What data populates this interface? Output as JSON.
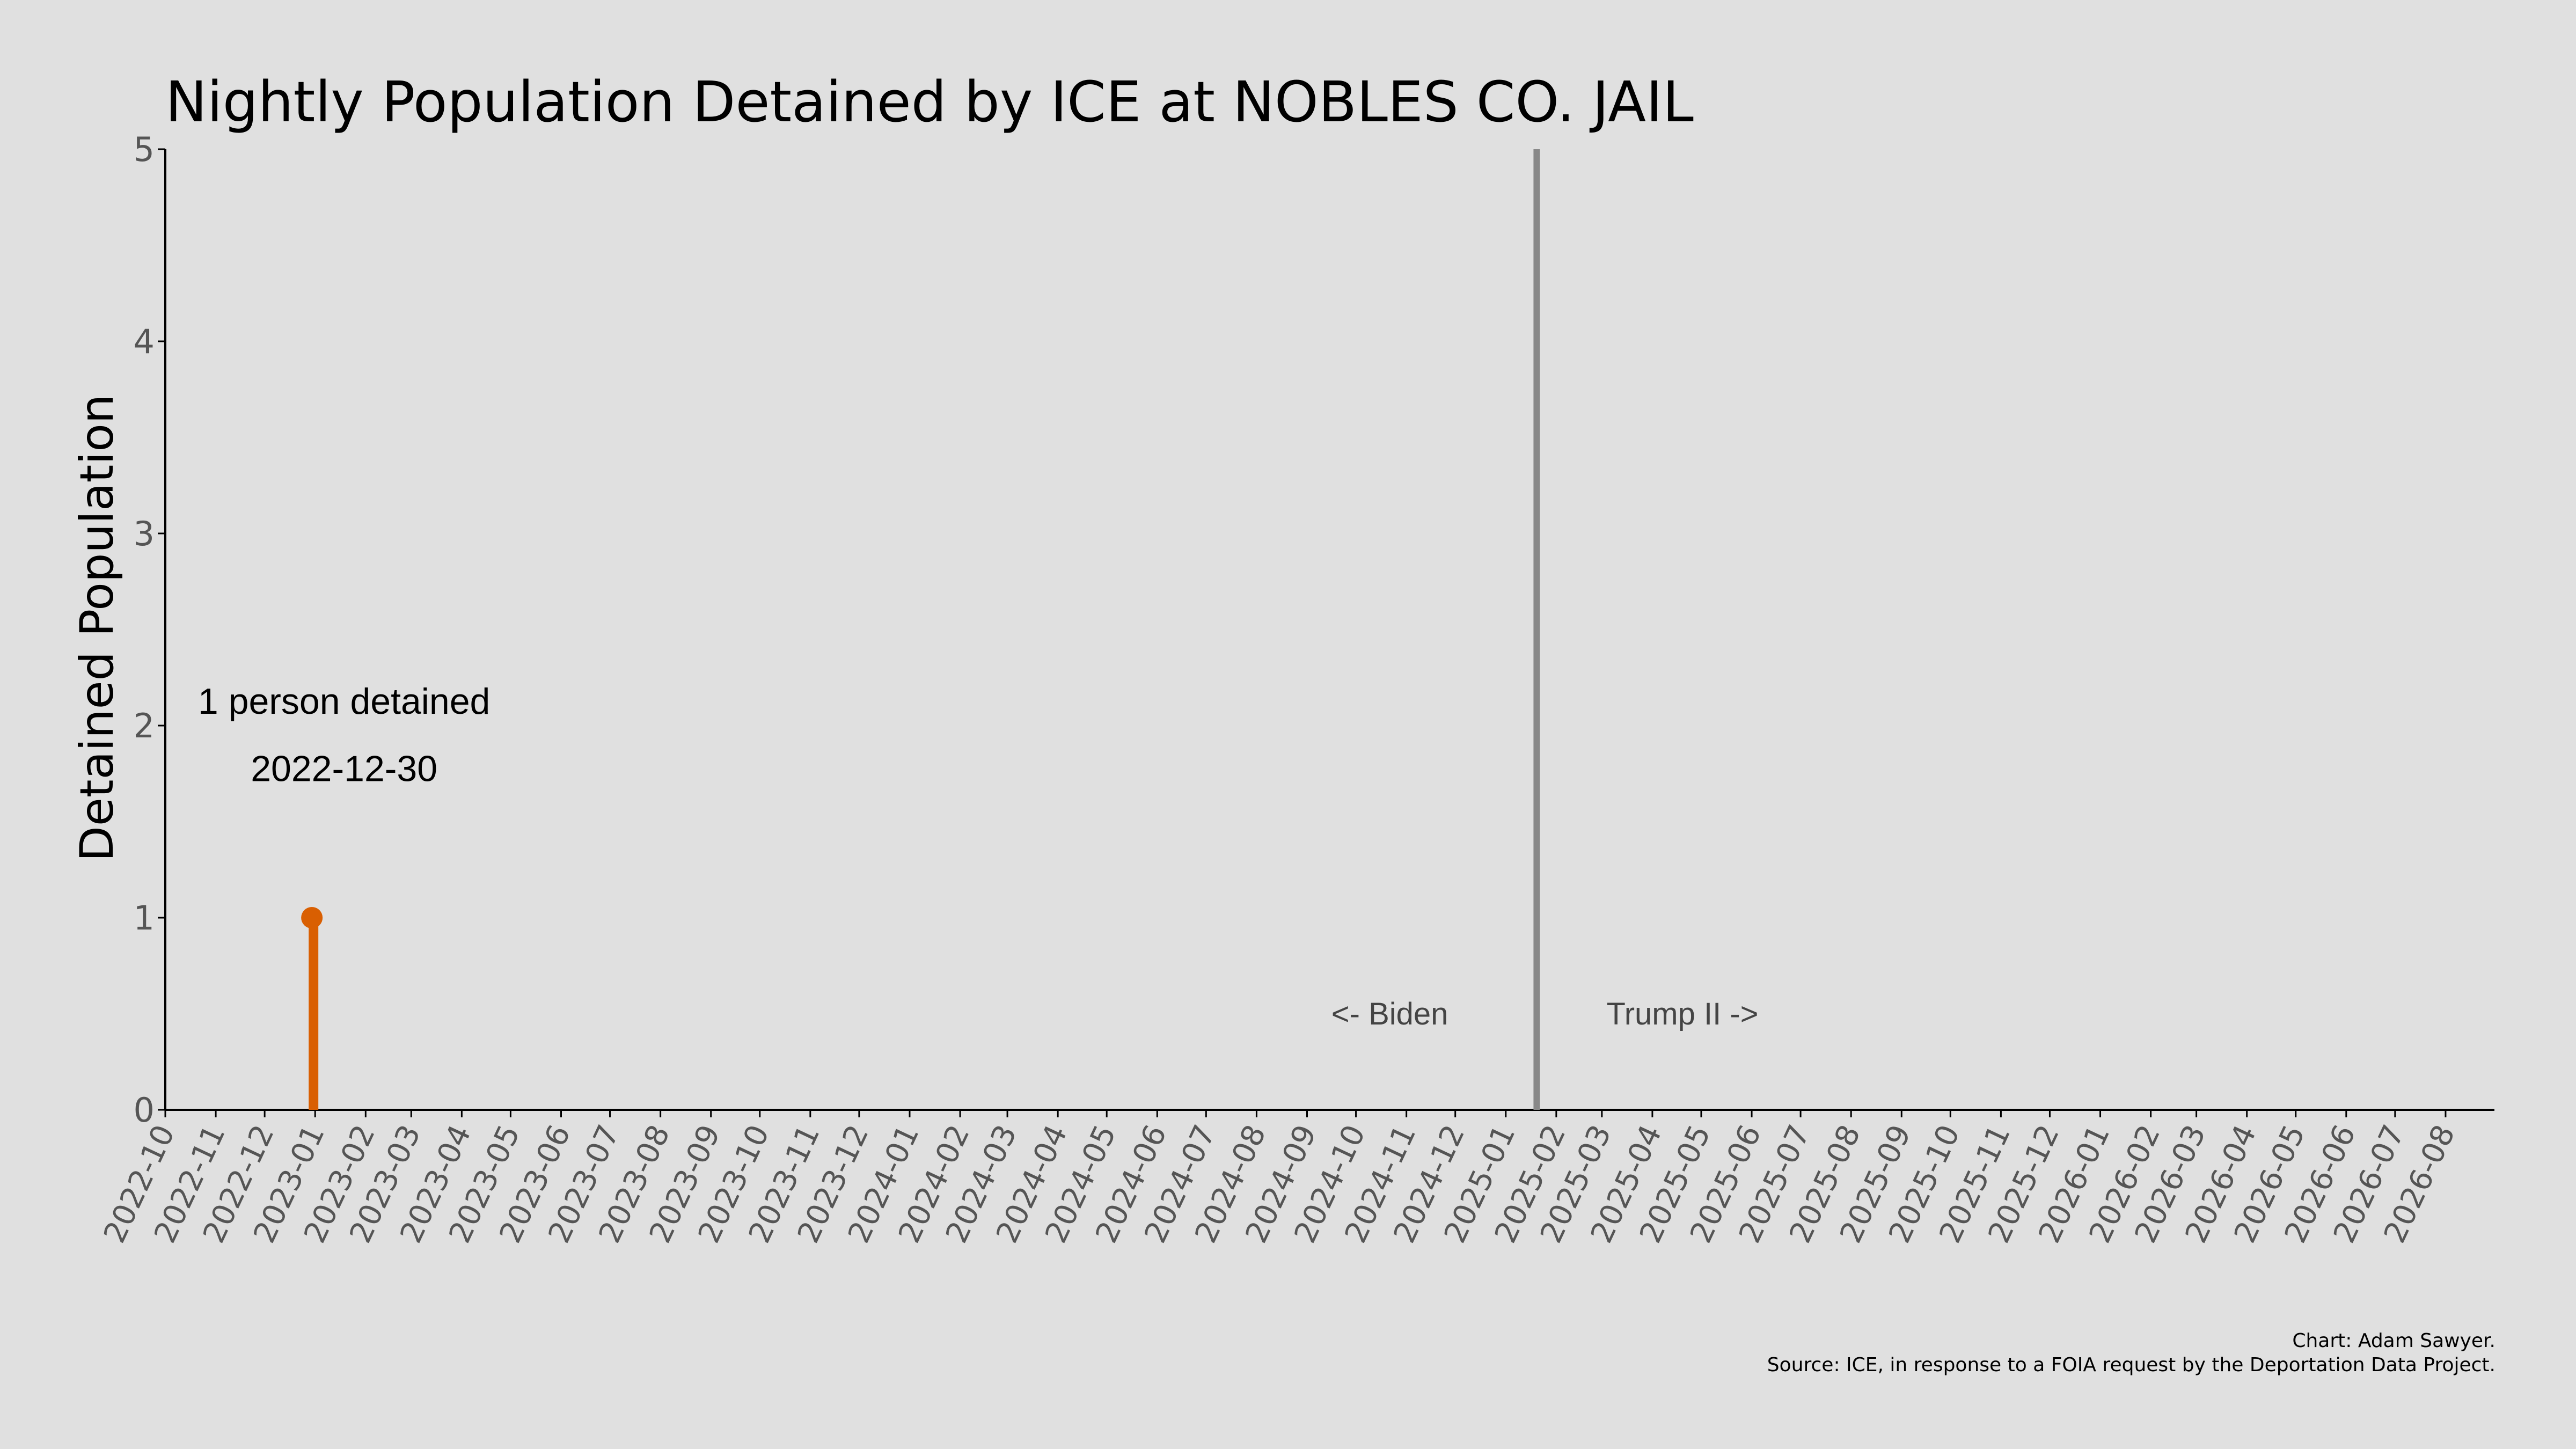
{
  "chart_data": {
    "type": "line",
    "title": "Nightly Population Detained by ICE at NOBLES CO. JAIL",
    "xlabel": "",
    "ylabel": "Detained Population",
    "x_axis_type": "date",
    "xlim": [
      "2022-10-01",
      "2026-08-31"
    ],
    "ylim": [
      0,
      5
    ],
    "yticks": [
      0,
      1,
      2,
      3,
      4,
      5
    ],
    "xticks": [
      "2022-10",
      "2022-11",
      "2022-12",
      "2023-01",
      "2023-02",
      "2023-03",
      "2023-04",
      "2023-05",
      "2023-06",
      "2023-07",
      "2023-08",
      "2023-09",
      "2023-10",
      "2023-11",
      "2023-12",
      "2024-01",
      "2024-02",
      "2024-03",
      "2024-04",
      "2024-05",
      "2024-06",
      "2024-07",
      "2024-08",
      "2024-09",
      "2024-10",
      "2024-11",
      "2024-12",
      "2025-01",
      "2025-02",
      "2025-03",
      "2025-04",
      "2025-05",
      "2025-06",
      "2025-07",
      "2025-08",
      "2025-09",
      "2025-10",
      "2025-11",
      "2025-12",
      "2026-01",
      "2026-02",
      "2026-03",
      "2026-04",
      "2026-05",
      "2026-06",
      "2026-07",
      "2026-08"
    ],
    "grid": false,
    "series": [
      {
        "color": "#d95f02",
        "points": [
          {
            "x": "2022-12-30",
            "y": 1
          },
          {
            "x": "2022-12-31",
            "y": 0
          }
        ]
      }
    ],
    "reference_line": {
      "x": "2025-01-20",
      "color": "#888888"
    },
    "annotations": [
      {
        "text": "1 person detained",
        "x": "2022-12-30",
        "y": 2.1
      },
      {
        "text": "2022-12-30",
        "x": "2022-12-30",
        "y": 1.8
      }
    ],
    "era_labels": {
      "left": "<- Biden",
      "right": "Trump II ->"
    },
    "caption": {
      "line1": "Chart: Adam Sawyer.",
      "line2": "Source: ICE, in response to a FOIA request by the Deportation Data Project."
    }
  }
}
